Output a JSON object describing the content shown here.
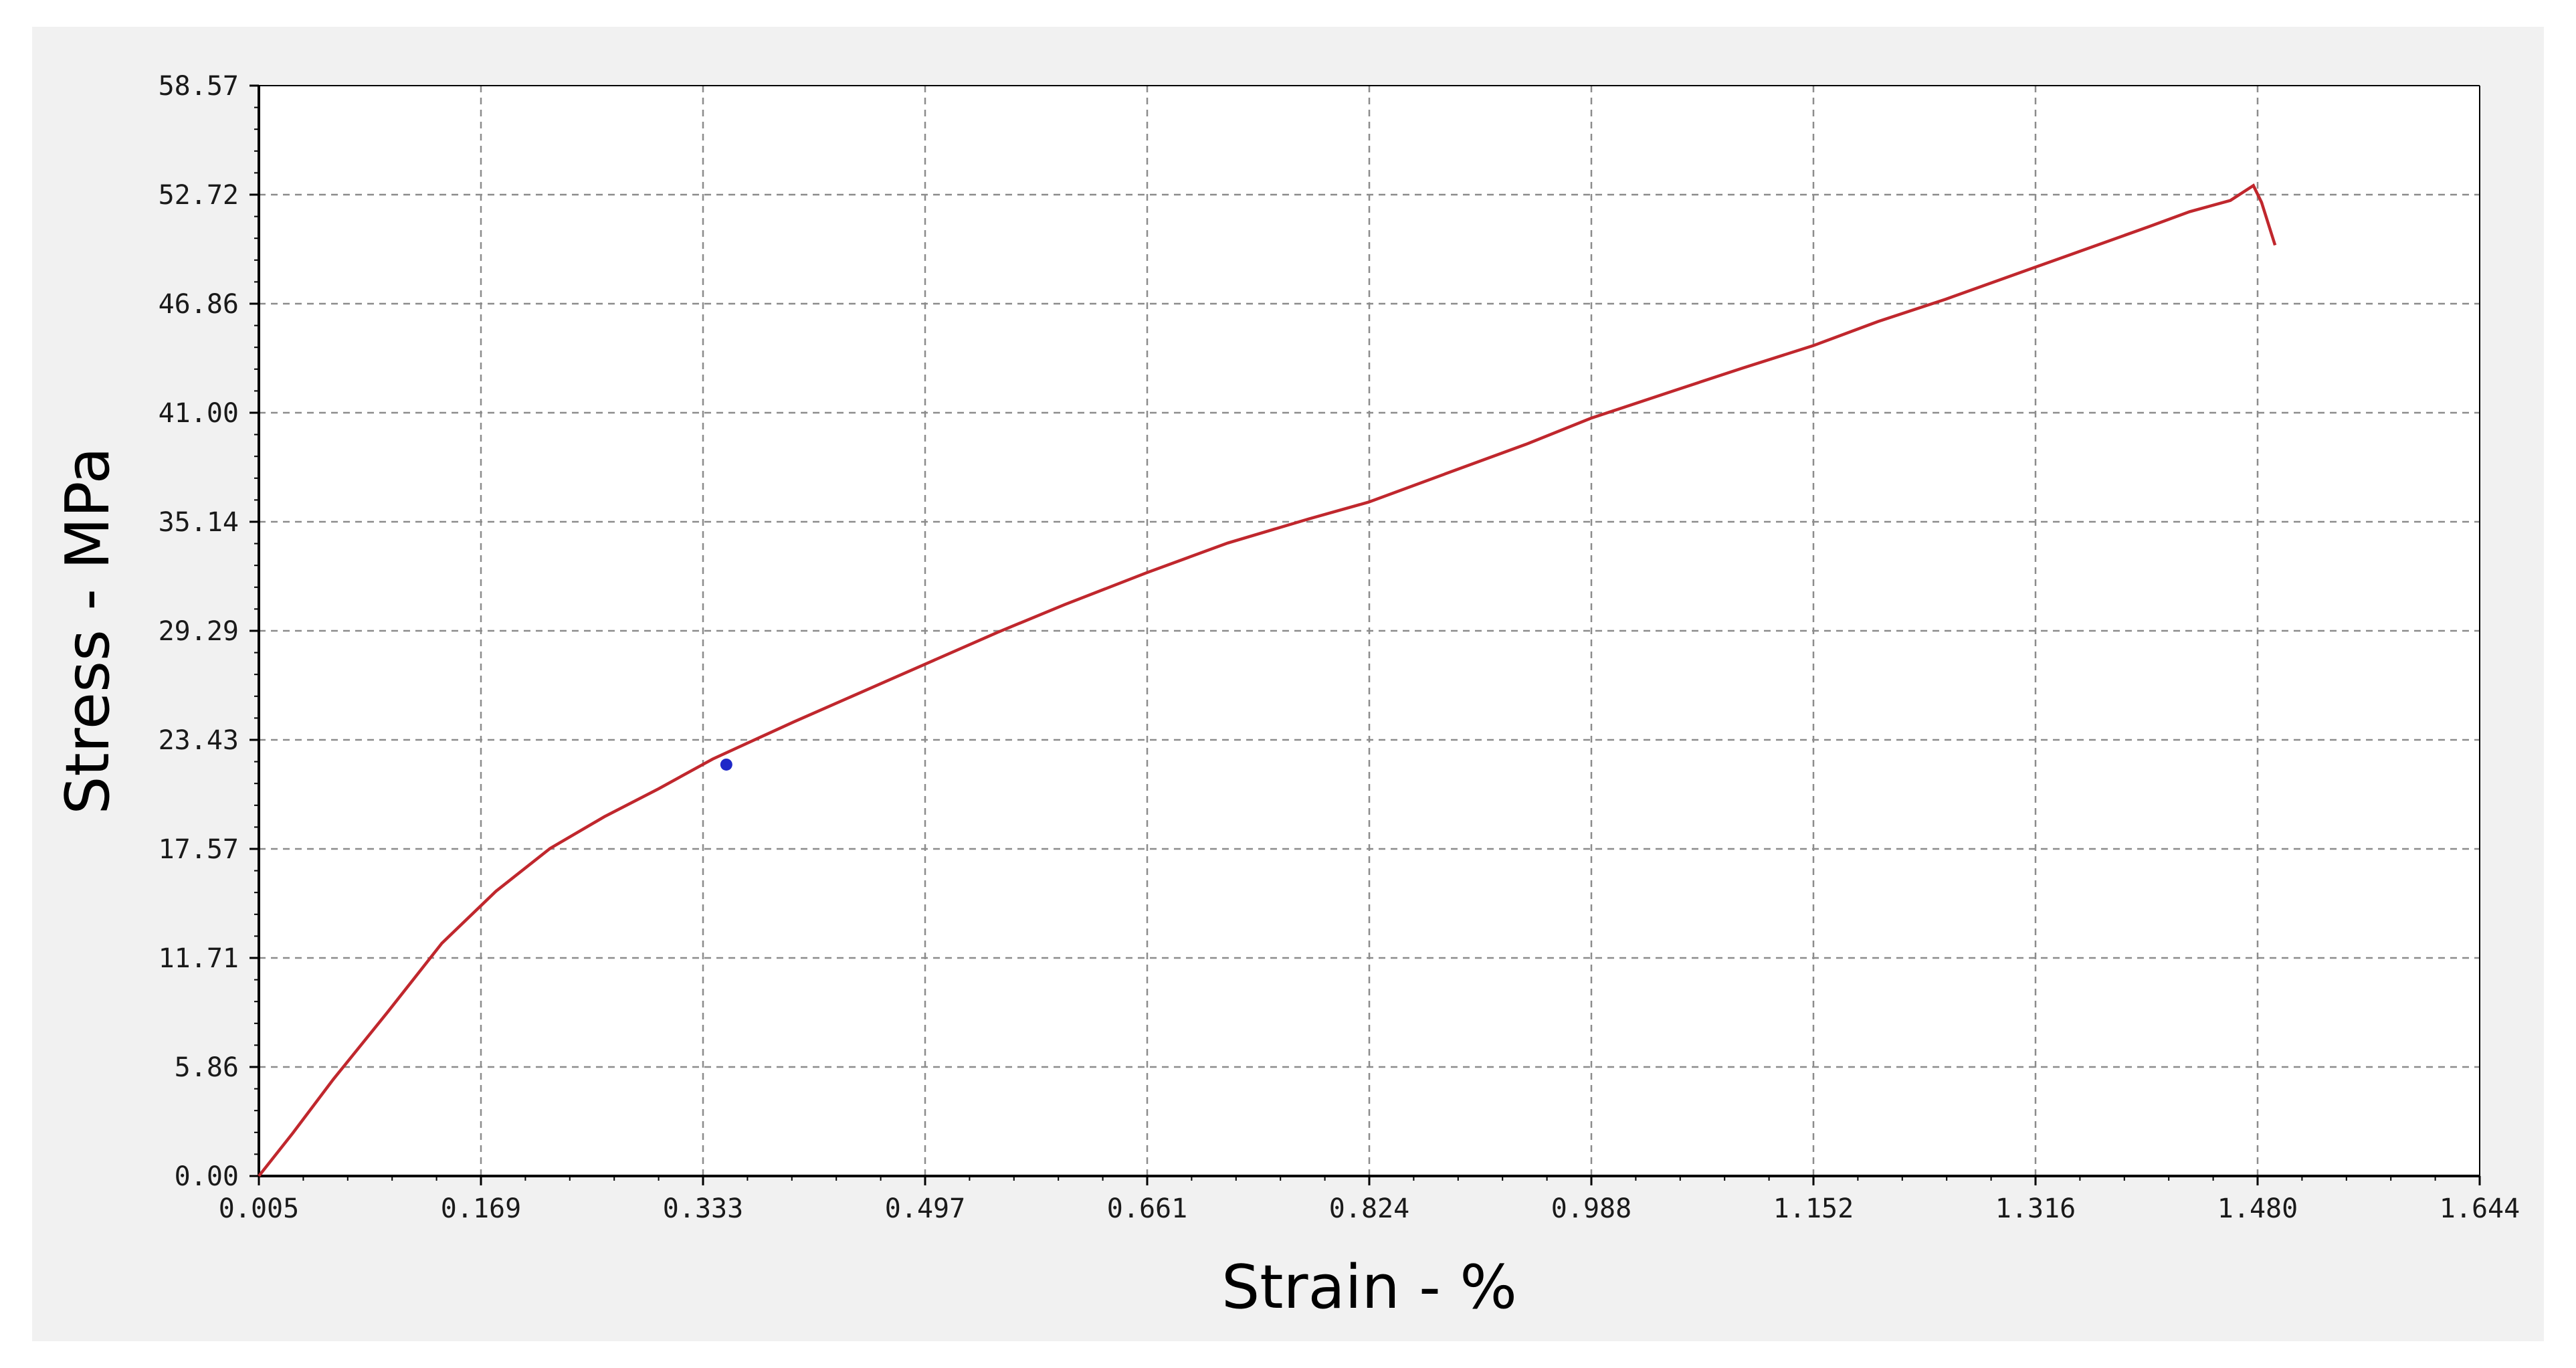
{
  "chart_data": {
    "type": "line",
    "xlabel": "Strain - %",
    "ylabel": "Stress - MPa",
    "x_ticks": [
      "0.005",
      "0.169",
      "0.333",
      "0.497",
      "0.661",
      "0.824",
      "0.988",
      "1.152",
      "1.316",
      "1.480",
      "1.644"
    ],
    "y_ticks": [
      "0.00",
      "5.86",
      "11.71",
      "17.57",
      "23.43",
      "29.29",
      "35.14",
      "41.00",
      "46.86",
      "52.72",
      "58.57"
    ],
    "xlim": [
      0.005,
      1.644
    ],
    "ylim": [
      0,
      58.57
    ],
    "grid": true,
    "series": [
      {
        "color": "#c0272d",
        "x": [
          0.005,
          0.03,
          0.06,
          0.1,
          0.14,
          0.18,
          0.22,
          0.26,
          0.3,
          0.34,
          0.4,
          0.45,
          0.5,
          0.55,
          0.6,
          0.66,
          0.72,
          0.78,
          0.824,
          0.88,
          0.94,
          0.988,
          1.05,
          1.1,
          1.152,
          1.2,
          1.25,
          1.3,
          1.35,
          1.4,
          1.43,
          1.46,
          1.477,
          1.483,
          1.493
        ],
        "y": [
          0,
          2.3,
          5.2,
          8.8,
          12.5,
          15.3,
          17.6,
          19.3,
          20.8,
          22.4,
          24.4,
          26.0,
          27.6,
          29.2,
          30.7,
          32.4,
          34.0,
          35.3,
          36.2,
          37.7,
          39.3,
          40.7,
          42.2,
          43.4,
          44.6,
          45.9,
          47.1,
          48.4,
          49.7,
          51.0,
          51.8,
          52.4,
          53.2,
          52.3,
          50.0
        ]
      }
    ],
    "marker": {
      "x": 0.35,
      "y": 22.1,
      "color": "#1f28c8"
    }
  }
}
